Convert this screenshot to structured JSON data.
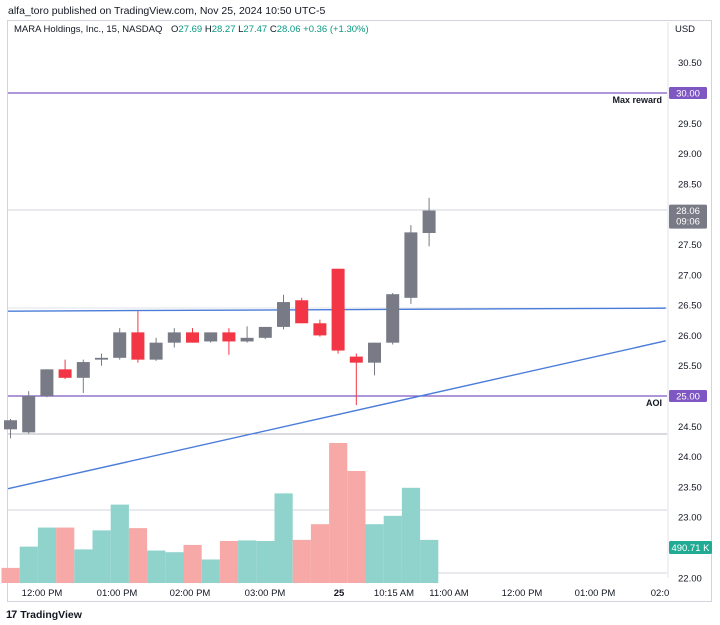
{
  "header": {
    "published_text": "alfa_toro published on TradingView.com, Nov 25, 2024 10:50 UTC-5"
  },
  "legend": {
    "symbol": "MARA Holdings, Inc., 15, NASDAQ",
    "o_label": "O",
    "o_value": "27.69",
    "h_label": "H",
    "h_value": "28.27",
    "l_label": "L",
    "l_value": "27.47",
    "c_label": "C",
    "c_value": "28.06",
    "change": "+0.36 (+1.30%)"
  },
  "currency": "USD",
  "footer": {
    "logo_mark": "17",
    "logo_text": "TradingView"
  },
  "colors": {
    "up": "#787b86",
    "down": "#f23645",
    "vol_up": "#8fd3cc",
    "vol_down": "#f7a9a7",
    "purple": "#7e57c2",
    "blue": "#4a7cd9",
    "grid": "#e0e3eb",
    "axis_text": "#131722"
  },
  "chart_data": {
    "type": "candlestick",
    "y_ticks": [
      "30.50",
      "30.00",
      "29.50",
      "29.00",
      "28.50",
      "28.00",
      "27.50",
      "27.00",
      "26.50",
      "26.00",
      "25.50",
      "25.00",
      "24.50",
      "24.00",
      "23.50",
      "23.00",
      "22.50",
      "22.00"
    ],
    "y_range": [
      21.9,
      30.8
    ],
    "x_ticks": [
      "12:00 PM",
      "01:00 PM",
      "02:00 PM",
      "03:00 PM",
      "25",
      "10:15 AM",
      "11:00 AM",
      "12:00 PM",
      "01:00 PM",
      "02:0"
    ],
    "candles": [
      {
        "o": 24.45,
        "h": 24.62,
        "l": 24.3,
        "c": 24.6
      },
      {
        "o": 24.4,
        "h": 25.08,
        "l": 24.38,
        "c": 25.0
      },
      {
        "o": 25.0,
        "h": 25.44,
        "l": 24.98,
        "c": 25.44
      },
      {
        "o": 25.44,
        "h": 25.6,
        "l": 25.28,
        "c": 25.3
      },
      {
        "o": 25.3,
        "h": 25.6,
        "l": 25.05,
        "c": 25.56
      },
      {
        "o": 25.6,
        "h": 25.7,
        "l": 25.5,
        "c": 25.63
      },
      {
        "o": 25.63,
        "h": 26.12,
        "l": 25.6,
        "c": 26.05
      },
      {
        "o": 26.05,
        "h": 26.4,
        "l": 25.55,
        "c": 25.6
      },
      {
        "o": 25.6,
        "h": 25.96,
        "l": 25.58,
        "c": 25.88
      },
      {
        "o": 25.88,
        "h": 26.12,
        "l": 25.8,
        "c": 26.05
      },
      {
        "o": 26.05,
        "h": 26.12,
        "l": 25.88,
        "c": 25.88
      },
      {
        "o": 25.9,
        "h": 26.05,
        "l": 25.88,
        "c": 26.05
      },
      {
        "o": 26.05,
        "h": 26.12,
        "l": 25.68,
        "c": 25.9
      },
      {
        "o": 25.9,
        "h": 26.15,
        "l": 25.88,
        "c": 25.96
      },
      {
        "o": 25.96,
        "h": 26.12,
        "l": 25.94,
        "c": 26.14
      },
      {
        "o": 26.14,
        "h": 26.67,
        "l": 26.1,
        "c": 26.55
      },
      {
        "o": 26.58,
        "h": 26.62,
        "l": 26.2,
        "c": 26.2
      },
      {
        "o": 26.2,
        "h": 26.26,
        "l": 25.98,
        "c": 26.0
      },
      {
        "o": 27.1,
        "h": 27.1,
        "l": 25.7,
        "c": 25.75
      },
      {
        "o": 25.65,
        "h": 25.7,
        "l": 24.85,
        "c": 25.55
      },
      {
        "o": 25.55,
        "h": 25.88,
        "l": 25.34,
        "c": 25.88
      },
      {
        "o": 25.88,
        "h": 26.7,
        "l": 25.85,
        "c": 26.68
      },
      {
        "o": 26.62,
        "h": 27.82,
        "l": 26.52,
        "c": 27.7
      },
      {
        "o": 27.69,
        "h": 28.27,
        "l": 27.47,
        "c": 28.06
      }
    ],
    "volumes": [
      {
        "v": 0.27,
        "up": false
      },
      {
        "v": 0.65,
        "up": true
      },
      {
        "v": 0.99,
        "up": true
      },
      {
        "v": 0.99,
        "up": false
      },
      {
        "v": 0.6,
        "up": true
      },
      {
        "v": 0.94,
        "up": true
      },
      {
        "v": 1.4,
        "up": true
      },
      {
        "v": 0.98,
        "up": false
      },
      {
        "v": 0.58,
        "up": true
      },
      {
        "v": 0.55,
        "up": true
      },
      {
        "v": 0.68,
        "up": false
      },
      {
        "v": 0.42,
        "up": true
      },
      {
        "v": 0.75,
        "up": false
      },
      {
        "v": 0.76,
        "up": true
      },
      {
        "v": 0.75,
        "up": true
      },
      {
        "v": 1.6,
        "up": true
      },
      {
        "v": 0.77,
        "up": false
      },
      {
        "v": 1.05,
        "up": false
      },
      {
        "v": 2.5,
        "up": false
      },
      {
        "v": 2.0,
        "up": false
      },
      {
        "v": 1.05,
        "up": true
      },
      {
        "v": 1.2,
        "up": true
      },
      {
        "v": 1.7,
        "up": true
      },
      {
        "v": 0.77,
        "up": true
      }
    ],
    "horizontal_lines": [
      {
        "name": "max-reward",
        "price": 30.0,
        "label": "Max reward",
        "color": "#7e57c2"
      },
      {
        "name": "aoi",
        "price": 25.0,
        "label": "AOI",
        "color": "#7e57c2"
      }
    ],
    "trend_lines": [
      {
        "name": "upper-blue-line",
        "p1": {
          "idx": -0.5,
          "price": 26.4
        },
        "p2": {
          "idx": 36.0,
          "price": 26.45
        }
      },
      {
        "name": "lower-blue-line",
        "p1": {
          "idx": -0.5,
          "price": 23.47
        },
        "p2": {
          "idx": 36.0,
          "price": 25.91
        }
      }
    ],
    "price_tags": [
      {
        "name": "max-reward-price-tag",
        "text": "30.00",
        "price": 30.0,
        "bg": "#7e57c2"
      },
      {
        "name": "aoi-price-tag",
        "text": "25.00",
        "price": 25.0,
        "bg": "#7e57c2"
      },
      {
        "name": "last-price-tag",
        "text": "28.06",
        "sub": "09:06",
        "price": 28.06,
        "bg": "#787b86"
      }
    ],
    "volume_tag": {
      "text": "490.71 K",
      "bg": "#22ab94"
    }
  }
}
